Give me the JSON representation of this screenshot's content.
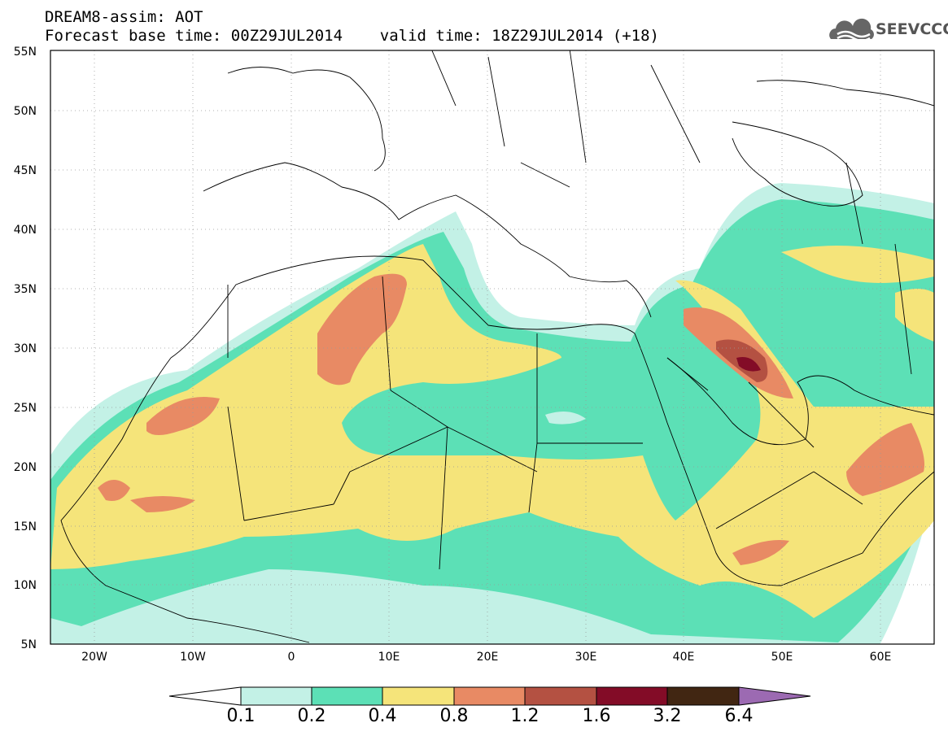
{
  "header": {
    "line1": "DREAM8-assim: AOT",
    "line2": "Forecast base time: 00Z29JUL2014    valid time: 18Z29JUL2014 (+18)"
  },
  "logo": {
    "text": "SEEVCCC",
    "icon": "cloud-icon"
  },
  "map": {
    "lat_ticks": [
      "55N",
      "50N",
      "45N",
      "40N",
      "35N",
      "30N",
      "25N",
      "20N",
      "15N",
      "10N",
      "5N"
    ],
    "lon_ticks": [
      "20W",
      "10W",
      "0",
      "10E",
      "20E",
      "30E",
      "40E",
      "50E",
      "60E"
    ],
    "lat_range": [
      5,
      55
    ],
    "lon_range": [
      -25,
      65
    ]
  },
  "colorbar": {
    "labels": [
      "0.1",
      "0.2",
      "0.4",
      "0.8",
      "1.2",
      "1.6",
      "3.2",
      "6.4"
    ],
    "colors": [
      "#c3f1e6",
      "#5ce0b6",
      "#f5e47a",
      "#e88a64",
      "#b45142",
      "#830c27",
      "#412612",
      "#9c6ab2"
    ]
  },
  "palette": {
    "low": "#c3f1e6",
    "mid": "#5ce0b6",
    "yellow": "#f5e47a",
    "orange": "#e88a64",
    "brown": "#b45142",
    "dark": "#830c27"
  }
}
